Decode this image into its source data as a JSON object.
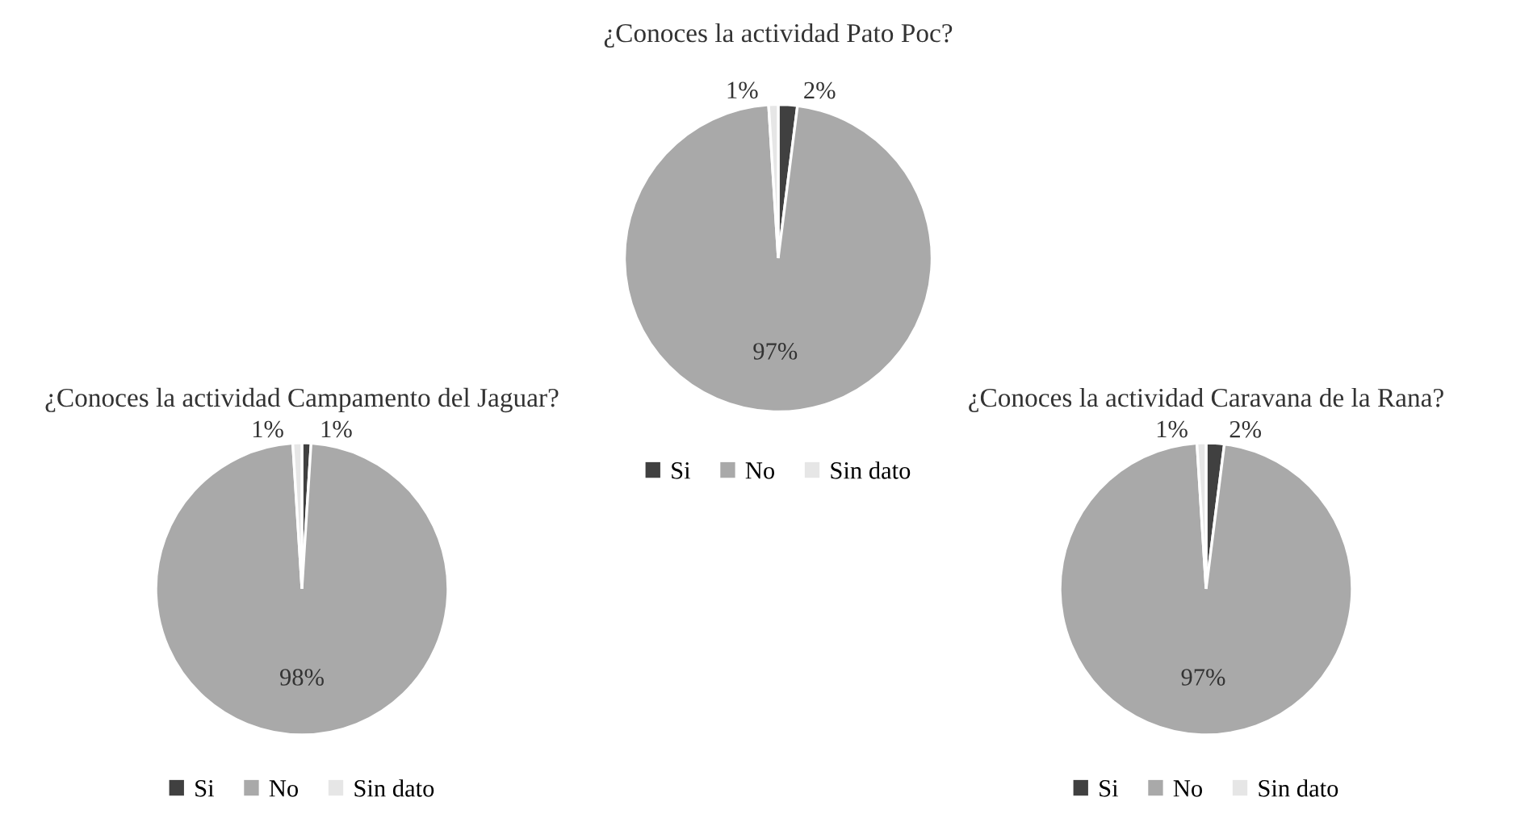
{
  "chart_data": [
    {
      "type": "pie",
      "title": "¿Conoces la actividad Pato Poc?",
      "categories": [
        "Si",
        "No",
        "Sin dato"
      ],
      "values": [
        2,
        97,
        1
      ],
      "value_labels": [
        "2%",
        "97%",
        "1%"
      ],
      "colors": [
        "#404040",
        "#a9a9a9",
        "#e6e6e6"
      ],
      "legend": "bottom"
    },
    {
      "type": "pie",
      "title": "¿Conoces la actividad Campamento del Jaguar?",
      "categories": [
        "Si",
        "No",
        "Sin dato"
      ],
      "values": [
        1,
        98,
        1
      ],
      "value_labels": [
        "1%",
        "98%",
        "1%"
      ],
      "colors": [
        "#404040",
        "#a9a9a9",
        "#e6e6e6"
      ],
      "legend": "bottom"
    },
    {
      "type": "pie",
      "title": "¿Conoces la actividad Caravana de la Rana?",
      "categories": [
        "Si",
        "No",
        "Sin dato"
      ],
      "values": [
        2,
        97,
        1
      ],
      "value_labels": [
        "2%",
        "97%",
        "1%"
      ],
      "colors": [
        "#404040",
        "#a9a9a9",
        "#e6e6e6"
      ],
      "legend": "bottom"
    }
  ]
}
